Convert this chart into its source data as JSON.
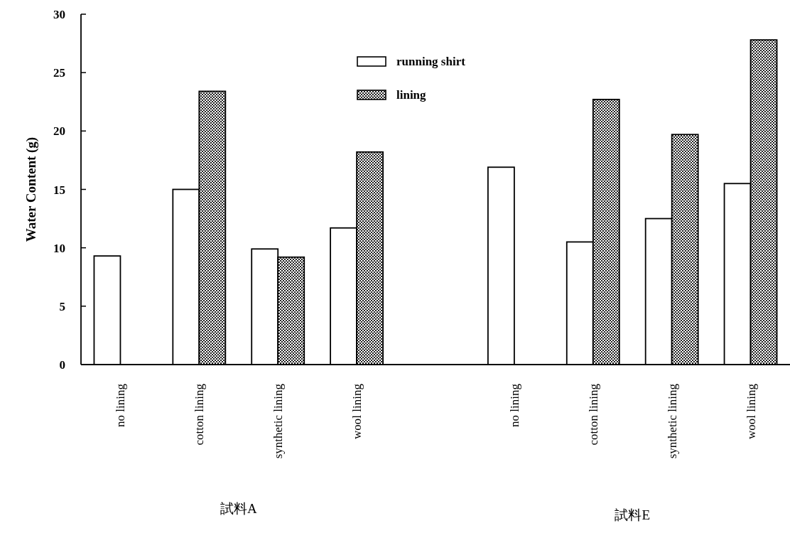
{
  "chart_data": {
    "type": "bar",
    "ylabel": "Water Content (g)",
    "categories": [
      "no lining",
      "cotton lining",
      "synthetic lining",
      "wool lining",
      null,
      "no lining",
      "cotton lining",
      "synthetic lining",
      "wool lining"
    ],
    "series": [
      {
        "name": "running shirt",
        "color": "#ffffff",
        "values": [
          9.3,
          15.0,
          9.9,
          11.7,
          null,
          16.9,
          10.5,
          12.5,
          15.5
        ]
      },
      {
        "name": "lining",
        "color": "#000000",
        "values": [
          null,
          23.4,
          9.2,
          18.2,
          null,
          null,
          22.7,
          19.7,
          27.8
        ]
      }
    ],
    "ylim": [
      0,
      30
    ],
    "yticks": [
      0,
      5,
      10,
      15,
      20,
      25,
      30
    ],
    "grid": false,
    "legend": "top",
    "annotations": [
      "試料A",
      "試料E"
    ]
  }
}
